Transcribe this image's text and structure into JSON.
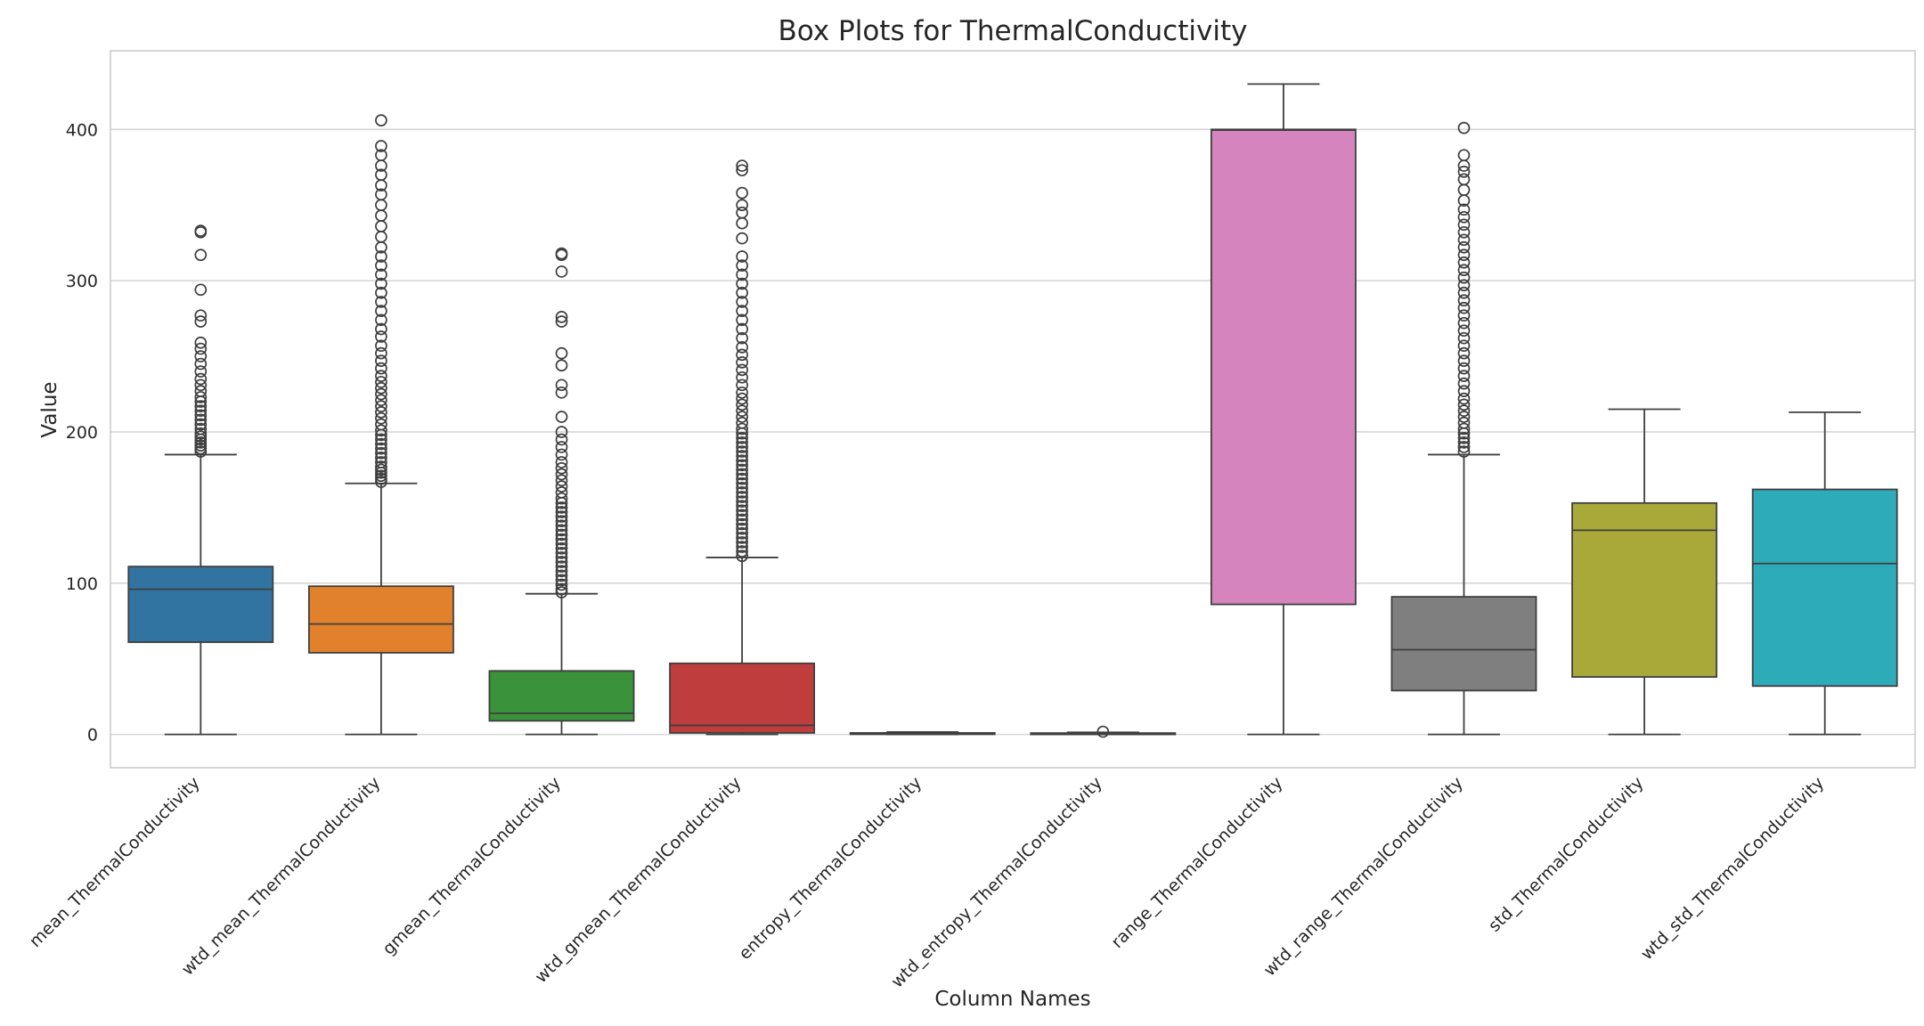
{
  "chart_data": {
    "type": "box",
    "title": "Box Plots for ThermalConductivity",
    "xlabel": "Column Names",
    "ylabel": "Value",
    "ylim": [
      -22,
      452
    ],
    "yticks": [
      0,
      100,
      200,
      300,
      400
    ],
    "grid": true,
    "categories": [
      "mean_ThermalConductivity",
      "wtd_mean_ThermalConductivity",
      "gmean_ThermalConductivity",
      "wtd_gmean_ThermalConductivity",
      "entropy_ThermalConductivity",
      "wtd_entropy_ThermalConductivity",
      "range_ThermalConductivity",
      "wtd_range_ThermalConductivity",
      "std_ThermalConductivity",
      "wtd_std_ThermalConductivity"
    ],
    "boxes": [
      {
        "color": "#3274a1",
        "min": 0,
        "q1": 61,
        "median": 96,
        "q3": 111,
        "max": 185,
        "outliers": [
          187,
          189,
          191,
          193,
          195,
          197,
          199,
          202,
          205,
          208,
          211,
          214,
          217,
          220,
          223,
          227,
          231,
          235,
          240,
          245,
          250,
          255,
          259,
          273,
          277,
          294,
          317,
          332,
          333
        ]
      },
      {
        "color": "#e1812c",
        "min": 0,
        "q1": 54,
        "median": 73,
        "q3": 98,
        "max": 166,
        "outliers": [
          167,
          169,
          171,
          173,
          175,
          177,
          180,
          183,
          186,
          189,
          192,
          195,
          198,
          201,
          205,
          209,
          213,
          217,
          221,
          225,
          229,
          233,
          237,
          242,
          247,
          252,
          257,
          263,
          268,
          274,
          280,
          286,
          292,
          298,
          304,
          310,
          316,
          322,
          329,
          336,
          343,
          350,
          357,
          363,
          370,
          376,
          383,
          389,
          406
        ]
      },
      {
        "color": "#3a923a",
        "min": 0,
        "q1": 9,
        "median": 14,
        "q3": 42,
        "max": 93,
        "outliers": [
          94,
          96,
          99,
          102,
          105,
          108,
          111,
          114,
          117,
          120,
          123,
          126,
          129,
          132,
          135,
          138,
          141,
          144,
          147,
          150,
          153,
          156,
          160,
          164,
          168,
          172,
          176,
          180,
          185,
          190,
          195,
          200,
          210,
          226,
          231,
          244,
          252,
          273,
          276,
          306,
          317,
          318
        ]
      },
      {
        "color": "#c03d3e",
        "min": 0,
        "q1": 1,
        "median": 6,
        "q3": 47,
        "max": 117,
        "outliers": [
          118,
          121,
          124,
          127,
          130,
          133,
          136,
          139,
          142,
          145,
          148,
          151,
          154,
          157,
          160,
          163,
          166,
          169,
          172,
          175,
          178,
          181,
          184,
          187,
          190,
          193,
          196,
          199,
          202,
          206,
          210,
          214,
          218,
          222,
          226,
          231,
          236,
          241,
          246,
          251,
          256,
          262,
          268,
          274,
          280,
          286,
          292,
          298,
          304,
          310,
          316,
          328,
          338,
          345,
          350,
          358,
          373,
          376
        ]
      },
      {
        "color": "#9372b2",
        "min": 0,
        "q1": 0.3,
        "median": 0.6,
        "q3": 1.0,
        "max": 1.6,
        "outliers": []
      },
      {
        "color": "#845b53",
        "min": 0,
        "q1": 0.2,
        "median": 0.5,
        "q3": 0.9,
        "max": 1.4,
        "outliers": [
          1.8
        ]
      },
      {
        "color": "#d684bd",
        "min": 0,
        "q1": 86,
        "median": 399.5,
        "q3": 400,
        "max": 430,
        "outliers": []
      },
      {
        "color": "#7f7f7f",
        "min": 0,
        "q1": 29,
        "median": 56,
        "q3": 91,
        "max": 185,
        "outliers": [
          187,
          190,
          193,
          196,
          199,
          202,
          206,
          210,
          214,
          218,
          222,
          227,
          232,
          237,
          242,
          247,
          252,
          257,
          262,
          267,
          272,
          277,
          282,
          287,
          292,
          297,
          302,
          307,
          312,
          317,
          322,
          327,
          332,
          337,
          342,
          347,
          353,
          360,
          367,
          372,
          376,
          383,
          401
        ]
      },
      {
        "color": "#a9a93a",
        "min": 0,
        "q1": 38,
        "median": 135,
        "q3": 153,
        "max": 215,
        "outliers": []
      },
      {
        "color": "#2eabb8",
        "min": 0,
        "q1": 32,
        "median": 113,
        "q3": 162,
        "max": 213,
        "outliers": []
      }
    ]
  }
}
